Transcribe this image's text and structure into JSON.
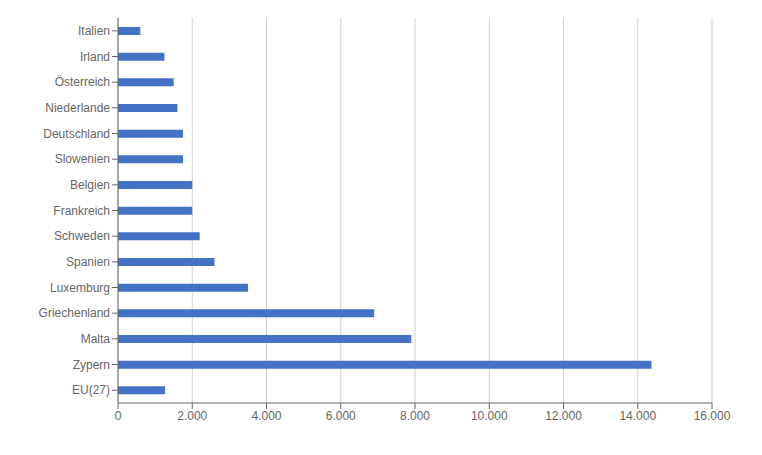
{
  "chart_data": {
    "type": "bar",
    "orientation": "horizontal",
    "categories": [
      "EU(27)",
      "Zypern",
      "Malta",
      "Griechenland",
      "Luxemburg",
      "Spanien",
      "Schweden",
      "Frankreich",
      "Belgien",
      "Slowenien",
      "Deutschland",
      "Niederlande",
      "Österreich",
      "Irland",
      "Italien"
    ],
    "values": [
      1270,
      14370,
      7900,
      6900,
      3500,
      2600,
      2200,
      2000,
      2000,
      1750,
      1750,
      1600,
      1500,
      1250,
      600
    ],
    "color": "#4472C4",
    "xlim": [
      0,
      16000
    ],
    "xticks": [
      0,
      {
        "value": 2000,
        "label": "2.000"
      },
      {
        "value": 4000,
        "label": "4.000"
      },
      {
        "value": 6000,
        "label": "6.000"
      },
      {
        "value": 8000,
        "label": "8.000"
      },
      {
        "value": 10000,
        "label": "10.000"
      },
      {
        "value": 12000,
        "label": "12.000"
      },
      {
        "value": 14000,
        "label": "14.000"
      },
      {
        "value": 16000,
        "label": "16.000"
      }
    ],
    "grid": true
  }
}
